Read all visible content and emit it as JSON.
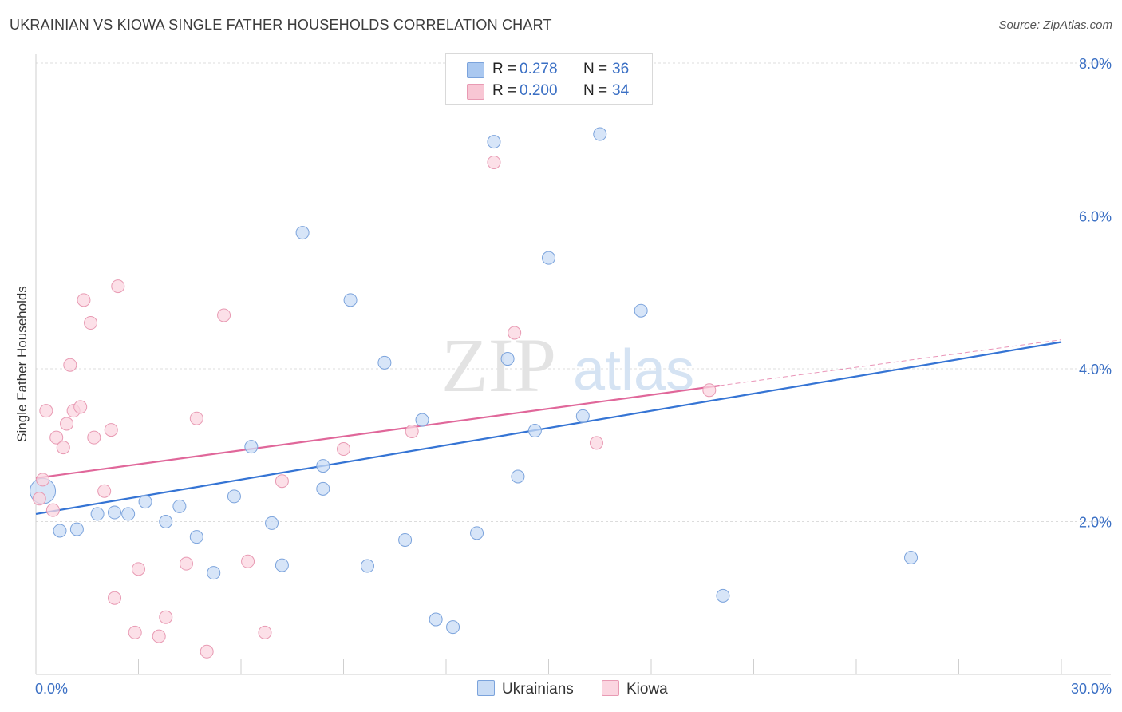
{
  "title": "UKRAINIAN VS KIOWA SINGLE FATHER HOUSEHOLDS CORRELATION CHART",
  "source": "Source: ZipAtlas.com",
  "watermark": {
    "zip": "ZIP",
    "atlas": "atlas"
  },
  "legend_top": [
    {
      "r_label": "R =",
      "r_value": "0.278",
      "n_label": "N =",
      "n_value": "36",
      "color": "#aac8f0",
      "border": "#7ba3dc"
    },
    {
      "r_label": "R =",
      "r_value": "0.200",
      "n_label": "N =",
      "n_value": "34",
      "color": "#f8c6d4",
      "border": "#e89ab3"
    }
  ],
  "legend_bottom": [
    {
      "label": "Ukrainians",
      "color": "#c9dcf5",
      "border": "#7ba3dc"
    },
    {
      "label": "Kiowa",
      "color": "#fbd5e0",
      "border": "#e89ab3"
    }
  ],
  "chart_data": {
    "type": "scatter",
    "title": "UKRAINIAN VS KIOWA SINGLE FATHER HOUSEHOLDS CORRELATION CHART",
    "xlabel": "",
    "ylabel": "Single Father Households",
    "xlim": [
      0,
      30
    ],
    "ylim": [
      0,
      8
    ],
    "x_tick_labels": [
      {
        "value": 0,
        "label": "0.0%"
      },
      {
        "value": 30,
        "label": "30.0%"
      }
    ],
    "y_tick_labels": [
      {
        "value": 2,
        "label": "2.0%"
      },
      {
        "value": 4,
        "label": "4.0%"
      },
      {
        "value": 6,
        "label": "6.0%"
      },
      {
        "value": 8,
        "label": "8.0%"
      }
    ],
    "series": [
      {
        "name": "Ukrainians",
        "fill": "#c9dcf5",
        "stroke": "#7ba3dc",
        "line_color": "#3574d4",
        "trend": {
          "x0": 0,
          "y0": 2.1,
          "x1": 30,
          "y1": 4.35
        },
        "points": [
          {
            "x": 0.2,
            "y": 2.4,
            "big": true
          },
          {
            "x": 0.7,
            "y": 1.88
          },
          {
            "x": 1.2,
            "y": 1.9
          },
          {
            "x": 1.8,
            "y": 2.1
          },
          {
            "x": 2.3,
            "y": 2.12
          },
          {
            "x": 2.7,
            "y": 2.1
          },
          {
            "x": 3.2,
            "y": 2.26
          },
          {
            "x": 3.8,
            "y": 2.0
          },
          {
            "x": 4.2,
            "y": 2.2
          },
          {
            "x": 4.7,
            "y": 1.8
          },
          {
            "x": 5.2,
            "y": 1.33
          },
          {
            "x": 5.8,
            "y": 2.33
          },
          {
            "x": 6.3,
            "y": 2.98
          },
          {
            "x": 6.9,
            "y": 1.98
          },
          {
            "x": 7.2,
            "y": 1.43
          },
          {
            "x": 7.8,
            "y": 5.78
          },
          {
            "x": 8.4,
            "y": 2.73
          },
          {
            "x": 8.4,
            "y": 2.43
          },
          {
            "x": 9.2,
            "y": 4.9
          },
          {
            "x": 9.7,
            "y": 1.42
          },
          {
            "x": 10.2,
            "y": 4.08
          },
          {
            "x": 10.8,
            "y": 1.76
          },
          {
            "x": 11.3,
            "y": 3.33
          },
          {
            "x": 11.7,
            "y": 0.72
          },
          {
            "x": 12.2,
            "y": 0.62
          },
          {
            "x": 12.9,
            "y": 1.85
          },
          {
            "x": 13.4,
            "y": 6.97
          },
          {
            "x": 13.8,
            "y": 4.13
          },
          {
            "x": 14.1,
            "y": 2.59
          },
          {
            "x": 14.6,
            "y": 3.19
          },
          {
            "x": 15.0,
            "y": 5.45
          },
          {
            "x": 16.0,
            "y": 3.38
          },
          {
            "x": 16.5,
            "y": 7.07
          },
          {
            "x": 17.7,
            "y": 4.76
          },
          {
            "x": 20.1,
            "y": 1.03
          },
          {
            "x": 25.6,
            "y": 1.53
          }
        ]
      },
      {
        "name": "Kiowa",
        "fill": "#fbd5e0",
        "stroke": "#e89ab3",
        "line_color": "#e0679a",
        "trend": {
          "x0": 0,
          "y0": 2.57,
          "x1": 20.0,
          "y1": 3.78
        },
        "trend_ext": {
          "x0": 20.0,
          "y0": 3.78,
          "x1": 30,
          "y1": 4.38
        },
        "points": [
          {
            "x": 0.2,
            "y": 2.55
          },
          {
            "x": 0.1,
            "y": 2.3
          },
          {
            "x": 0.3,
            "y": 3.45
          },
          {
            "x": 0.5,
            "y": 2.15
          },
          {
            "x": 0.6,
            "y": 3.1
          },
          {
            "x": 0.8,
            "y": 2.97
          },
          {
            "x": 0.9,
            "y": 3.28
          },
          {
            "x": 1.0,
            "y": 4.05
          },
          {
            "x": 1.1,
            "y": 3.45
          },
          {
            "x": 1.3,
            "y": 3.5
          },
          {
            "x": 1.4,
            "y": 4.9
          },
          {
            "x": 1.6,
            "y": 4.6
          },
          {
            "x": 1.7,
            "y": 3.1
          },
          {
            "x": 2.0,
            "y": 2.4
          },
          {
            "x": 2.2,
            "y": 3.2
          },
          {
            "x": 2.4,
            "y": 5.08
          },
          {
            "x": 2.3,
            "y": 1.0
          },
          {
            "x": 2.9,
            "y": 0.55
          },
          {
            "x": 3.0,
            "y": 1.38
          },
          {
            "x": 3.6,
            "y": 0.5
          },
          {
            "x": 3.8,
            "y": 0.75
          },
          {
            "x": 4.4,
            "y": 1.45
          },
          {
            "x": 4.7,
            "y": 3.35
          },
          {
            "x": 5.0,
            "y": 0.3
          },
          {
            "x": 5.5,
            "y": 4.7
          },
          {
            "x": 6.2,
            "y": 1.48
          },
          {
            "x": 6.7,
            "y": 0.55
          },
          {
            "x": 7.2,
            "y": 2.53
          },
          {
            "x": 9.0,
            "y": 2.95
          },
          {
            "x": 11.0,
            "y": 3.18
          },
          {
            "x": 13.4,
            "y": 6.7
          },
          {
            "x": 14.0,
            "y": 4.47
          },
          {
            "x": 16.4,
            "y": 3.03
          },
          {
            "x": 19.7,
            "y": 3.72
          }
        ]
      }
    ]
  }
}
